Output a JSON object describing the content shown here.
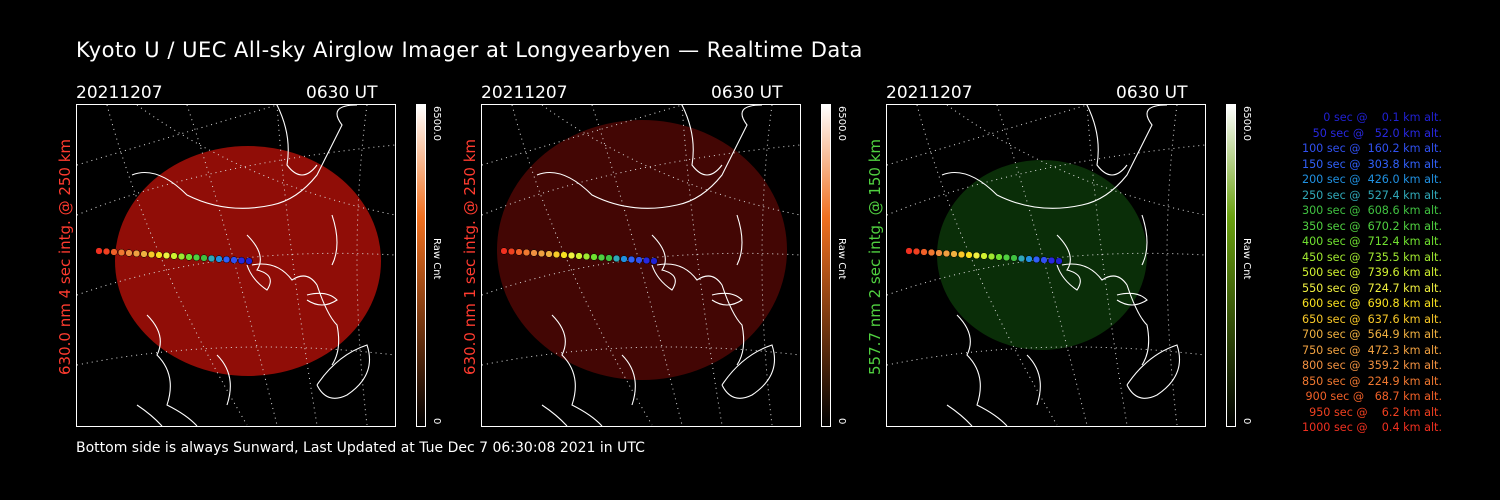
{
  "title": "Kyoto U / UEC All-sky Airglow Imager at Longyearbyen — Realtime Data",
  "footer": "Bottom side is always Sunward, Last Updated at Tue Dec  7 06:30:08 2021 in UTC",
  "panels": [
    {
      "date": "20211207",
      "time": "0630 UT",
      "side_label": "630.0 nm 4 sec intg. @ 250 km",
      "side_color": "#ff3b2f",
      "fill": "#b01008",
      "fill_opacity": "0.82",
      "cbar_top": "#ffffff",
      "cbar_mid": "#f07020",
      "cbar_bot": "#000000",
      "cbar_max": "6500.0",
      "cbar_min": "0",
      "cbar_unit": "Raw Cnt"
    },
    {
      "date": "20211207",
      "time": "0630 UT",
      "side_label": "630.0 nm 1 sec intg. @ 250 km",
      "side_color": "#ff3b2f",
      "fill": "#5a0806",
      "fill_opacity": "0.75",
      "cbar_top": "#ffffff",
      "cbar_mid": "#f07020",
      "cbar_bot": "#000000",
      "cbar_max": "6500.0",
      "cbar_min": "0",
      "cbar_unit": "Raw Cnt"
    },
    {
      "date": "20211207",
      "time": "0630 UT",
      "side_label": "557.7 nm 2 sec intg. @ 150 km",
      "side_color": "#50d040",
      "fill": "#0c3a0a",
      "fill_opacity": "0.8",
      "cbar_top": "#ffffff",
      "cbar_mid": "#6aa010",
      "cbar_bot": "#000000",
      "cbar_max": "6500.0",
      "cbar_min": "0",
      "cbar_unit": "Raw Cnt"
    }
  ],
  "legend": [
    {
      "text": "   0 sec @    0.1 km alt.",
      "color": "#2020d0"
    },
    {
      "text": "  50 sec @   52.0 km alt.",
      "color": "#2828e0"
    },
    {
      "text": " 100 sec @  160.2 km alt.",
      "color": "#3050f0"
    },
    {
      "text": " 150 sec @  303.8 km alt.",
      "color": "#3060f8"
    },
    {
      "text": " 200 sec @  426.0 km alt.",
      "color": "#2090e0"
    },
    {
      "text": " 250 sec @  527.4 km alt.",
      "color": "#30a8b8"
    },
    {
      "text": " 300 sec @  608.6 km alt.",
      "color": "#40c040"
    },
    {
      "text": " 350 sec @  670.2 km alt.",
      "color": "#50d040"
    },
    {
      "text": " 400 sec @  712.4 km alt.",
      "color": "#70e030"
    },
    {
      "text": " 450 sec @  735.5 km alt.",
      "color": "#a0e830"
    },
    {
      "text": " 500 sec @  739.6 km alt.",
      "color": "#d0f030"
    },
    {
      "text": " 550 sec @  724.7 km alt.",
      "color": "#f0f040"
    },
    {
      "text": " 600 sec @  690.8 km alt.",
      "color": "#f8e020"
    },
    {
      "text": " 650 sec @  637.6 km alt.",
      "color": "#f8c828"
    },
    {
      "text": " 700 sec @  564.9 km alt.",
      "color": "#f0b040"
    },
    {
      "text": " 750 sec @  472.3 km alt.",
      "color": "#f0a040"
    },
    {
      "text": " 800 sec @  359.2 km alt.",
      "color": "#f09040"
    },
    {
      "text": " 850 sec @  224.9 km alt.",
      "color": "#f07830"
    },
    {
      "text": " 900 sec @   68.7 km alt.",
      "color": "#f06028"
    },
    {
      "text": " 950 sec @    6.2 km alt.",
      "color": "#f04020"
    },
    {
      "text": "1000 sec @    0.4 km alt.",
      "color": "#f03020"
    }
  ]
}
